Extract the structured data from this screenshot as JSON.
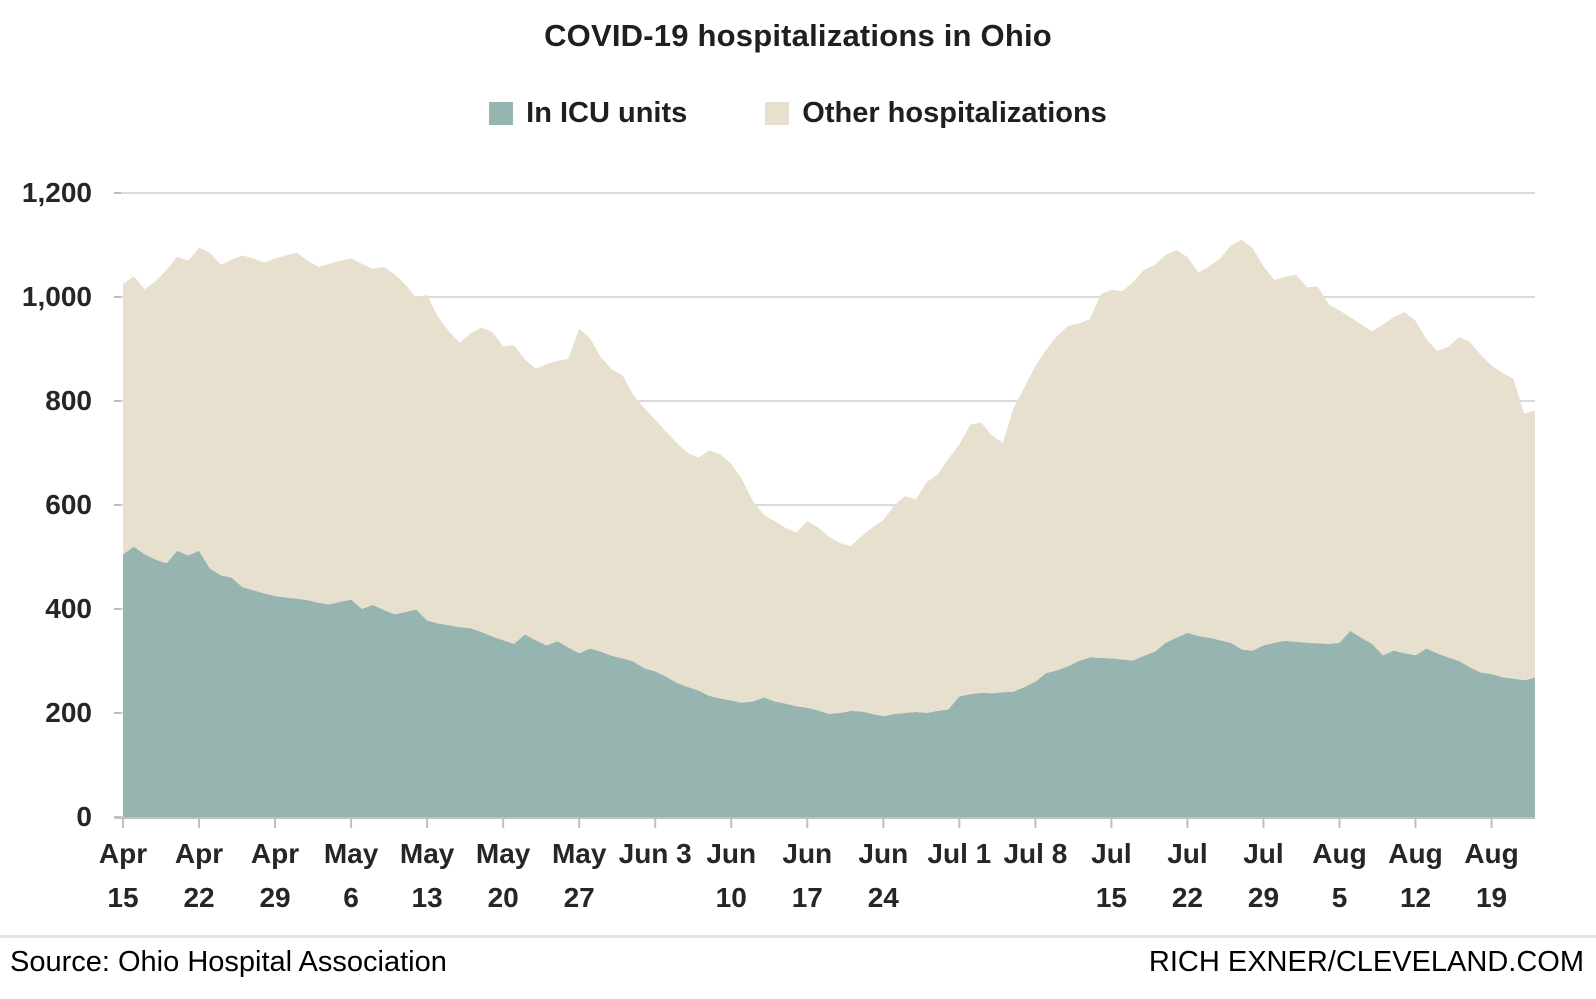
{
  "title": "COVID-19 hospitalizations in Ohio",
  "footer": {
    "source": "Source: Ohio Hospital Association",
    "credit": "RICH EXNER/CLEVELAND.COM"
  },
  "colors": {
    "icu": "#96b4b0",
    "other": "#e8e0ce",
    "gridline": "#cfcfcf",
    "axis": "#bfbfbf",
    "text": "#262626"
  },
  "chart_data": {
    "type": "area",
    "stacked": true,
    "title": "COVID-19 hospitalizations in Ohio",
    "xlabel": "",
    "ylabel": "",
    "ylim": [
      0,
      1200
    ],
    "grid": true,
    "legend_position": "top",
    "y_ticks": [
      0,
      200,
      400,
      600,
      800,
      1000,
      1200
    ],
    "y_tick_labels": [
      "0",
      "200",
      "400",
      "600",
      "800",
      "1,000",
      "1,200"
    ],
    "x_tick_every": 7,
    "x_tick_labels": [
      "Apr\n15",
      "Apr\n22",
      "Apr\n29",
      "May\n6",
      "May\n13",
      "May\n20",
      "May\n27",
      "Jun 3",
      "Jun\n10",
      "Jun\n17",
      "Jun\n24",
      "Jul 1",
      "Jul 8",
      "Jul\n15",
      "Jul\n22",
      "Jul\n29",
      "Aug\n5",
      "Aug\n12",
      "Aug\n19"
    ],
    "x": [
      "Apr 15",
      "Apr 16",
      "Apr 17",
      "Apr 18",
      "Apr 19",
      "Apr 20",
      "Apr 21",
      "Apr 22",
      "Apr 23",
      "Apr 24",
      "Apr 25",
      "Apr 26",
      "Apr 27",
      "Apr 28",
      "Apr 29",
      "Apr 30",
      "May 1",
      "May 2",
      "May 3",
      "May 4",
      "May 5",
      "May 6",
      "May 7",
      "May 8",
      "May 9",
      "May 10",
      "May 11",
      "May 12",
      "May 13",
      "May 14",
      "May 15",
      "May 16",
      "May 17",
      "May 18",
      "May 19",
      "May 20",
      "May 21",
      "May 22",
      "May 23",
      "May 24",
      "May 25",
      "May 26",
      "May 27",
      "May 28",
      "May 29",
      "May 30",
      "May 31",
      "Jun 1",
      "Jun 2",
      "Jun 3",
      "Jun 4",
      "Jun 5",
      "Jun 6",
      "Jun 7",
      "Jun 8",
      "Jun 9",
      "Jun 10",
      "Jun 11",
      "Jun 12",
      "Jun 13",
      "Jun 14",
      "Jun 15",
      "Jun 16",
      "Jun 17",
      "Jun 18",
      "Jun 19",
      "Jun 20",
      "Jun 21",
      "Jun 22",
      "Jun 23",
      "Jun 24",
      "Jun 25",
      "Jun 26",
      "Jun 27",
      "Jun 28",
      "Jun 29",
      "Jun 30",
      "Jul 1",
      "Jul 2",
      "Jul 3",
      "Jul 4",
      "Jul 5",
      "Jul 6",
      "Jul 7",
      "Jul 8",
      "Jul 9",
      "Jul 10",
      "Jul 11",
      "Jul 12",
      "Jul 13",
      "Jul 14",
      "Jul 15",
      "Jul 16",
      "Jul 17",
      "Jul 18",
      "Jul 19",
      "Jul 20",
      "Jul 21",
      "Jul 22",
      "Jul 23",
      "Jul 24",
      "Jul 25",
      "Jul 26",
      "Jul 27",
      "Jul 28",
      "Jul 29",
      "Jul 30",
      "Jul 31",
      "Aug 1",
      "Aug 2",
      "Aug 3",
      "Aug 4",
      "Aug 5",
      "Aug 6",
      "Aug 7",
      "Aug 8",
      "Aug 9",
      "Aug 10",
      "Aug 11",
      "Aug 12",
      "Aug 13",
      "Aug 14",
      "Aug 15",
      "Aug 16",
      "Aug 17",
      "Aug 18",
      "Aug 19",
      "Aug 20",
      "Aug 21",
      "Aug 22",
      "Aug 23"
    ],
    "series": [
      {
        "name": "In ICU units",
        "color": "#96b4b0",
        "values": [
          505,
          520,
          505,
          495,
          488,
          512,
          503,
          512,
          478,
          465,
          460,
          442,
          436,
          430,
          425,
          422,
          420,
          417,
          412,
          409,
          414,
          418,
          400,
          408,
          398,
          390,
          394,
          399,
          378,
          372,
          369,
          365,
          363,
          356,
          347,
          340,
          333,
          351,
          340,
          330,
          338,
          326,
          315,
          324,
          318,
          310,
          305,
          299,
          286,
          280,
          270,
          258,
          250,
          243,
          233,
          228,
          224,
          220,
          222,
          230,
          222,
          218,
          213,
          210,
          205,
          198,
          200,
          204,
          203,
          198,
          194,
          198,
          200,
          202,
          200,
          204,
          207,
          232,
          236,
          239,
          238,
          240,
          241,
          250,
          260,
          277,
          282,
          290,
          300,
          307,
          306,
          305,
          303,
          301,
          310,
          318,
          335,
          345,
          354,
          348,
          345,
          340,
          335,
          322,
          320,
          330,
          335,
          339,
          337,
          335,
          334,
          333,
          335,
          358,
          345,
          333,
          311,
          320,
          315,
          311,
          324,
          315,
          307,
          300,
          288,
          278,
          275,
          269,
          266,
          263,
          268
        ]
      },
      {
        "name": "Other hospitalizations",
        "color": "#e8e0ce",
        "values": [
          520,
          520,
          510,
          535,
          564,
          566,
          567,
          583,
          607,
          597,
          612,
          638,
          638,
          636,
          649,
          658,
          665,
          653,
          646,
          655,
          656,
          656,
          664,
          646,
          660,
          654,
          630,
          599,
          626,
          590,
          565,
          547,
          567,
          585,
          586,
          565,
          574,
          529,
          522,
          541,
          539,
          555,
          624,
          597,
          566,
          551,
          544,
          512,
          500,
          484,
          471,
          461,
          450,
          448,
          472,
          469,
          455,
          429,
          385,
          351,
          347,
          338,
          334,
          359,
          352,
          341,
          327,
          317,
          337,
          359,
          377,
          401,
          417,
          409,
          444,
          455,
          482,
          485,
          518,
          520,
          496,
          479,
          546,
          577,
          607,
          622,
          643,
          654,
          649,
          650,
          699,
          709,
          708,
          728,
          742,
          744,
          746,
          745,
          723,
          699,
          714,
          734,
          764,
          788,
          774,
          729,
          698,
          700,
          706,
          684,
          686,
          653,
          639,
          603,
          602,
          601,
          636,
          641,
          656,
          643,
          595,
          581,
          597,
          623,
          626,
          611,
          593,
          585,
          577,
          513,
          514
        ]
      }
    ]
  }
}
